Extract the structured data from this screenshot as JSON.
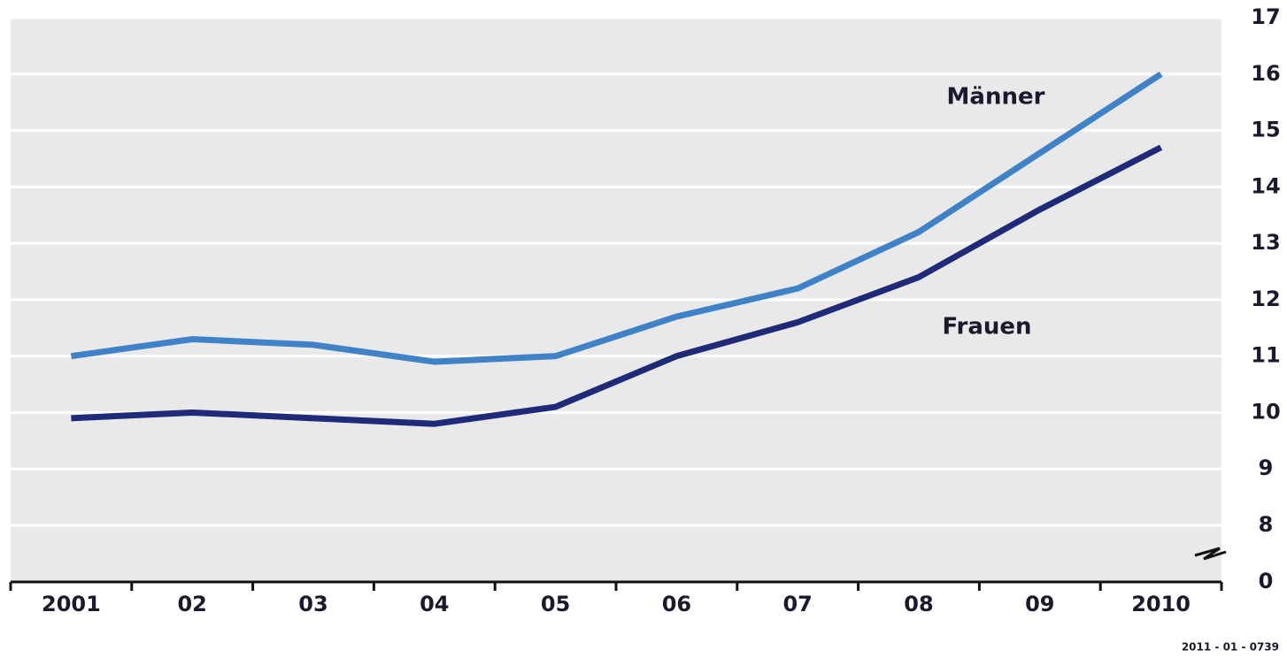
{
  "chart_data": {
    "type": "line",
    "categories": [
      "2001",
      "02",
      "03",
      "04",
      "05",
      "06",
      "07",
      "08",
      "09",
      "2010"
    ],
    "series": [
      {
        "name": "Männer",
        "color": "#3f82c8",
        "values": [
          11.0,
          11.3,
          11.2,
          10.9,
          11.0,
          11.7,
          12.2,
          13.2,
          14.6,
          16.0
        ]
      },
      {
        "name": "Frauen",
        "color": "#1f2b78",
        "values": [
          9.9,
          10.0,
          9.9,
          9.8,
          10.1,
          11.0,
          11.6,
          12.4,
          13.6,
          14.7
        ]
      }
    ],
    "ylim": [
      0,
      17
    ],
    "axis_break": [
      0,
      8
    ],
    "yticks": [
      0,
      8,
      9,
      10,
      11,
      12,
      13,
      14,
      15,
      16,
      17
    ],
    "grid": true,
    "source": "2011 - 01 - 0739"
  }
}
